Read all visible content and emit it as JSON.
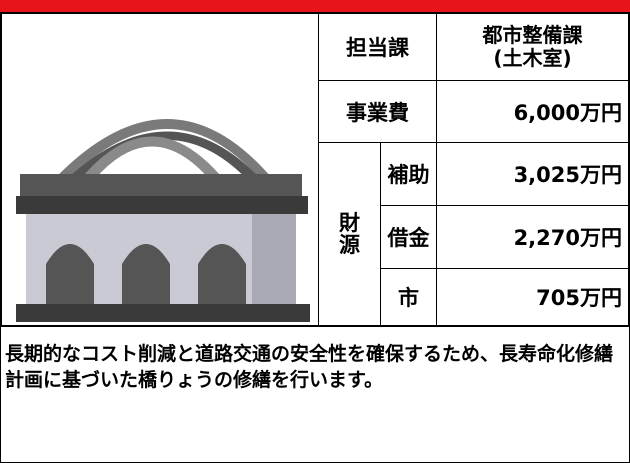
{
  "table": {
    "department": {
      "label": "担当課",
      "value": [
        "都市整備課",
        "(土木室)"
      ]
    },
    "cost": {
      "label": "事業費",
      "value": "6,000万円"
    },
    "funding": {
      "label": [
        "財",
        "源"
      ],
      "rows": [
        {
          "label": "補助",
          "value": "3,025万円"
        },
        {
          "label": "借金",
          "value": "2,270万円"
        },
        {
          "label": "市",
          "value": "705万円"
        }
      ]
    }
  },
  "description": "長期的なコスト削減と道路交通の安全性を確保するため、長寿命化修繕計画に基づいた橋りょうの修繕を行います。"
}
